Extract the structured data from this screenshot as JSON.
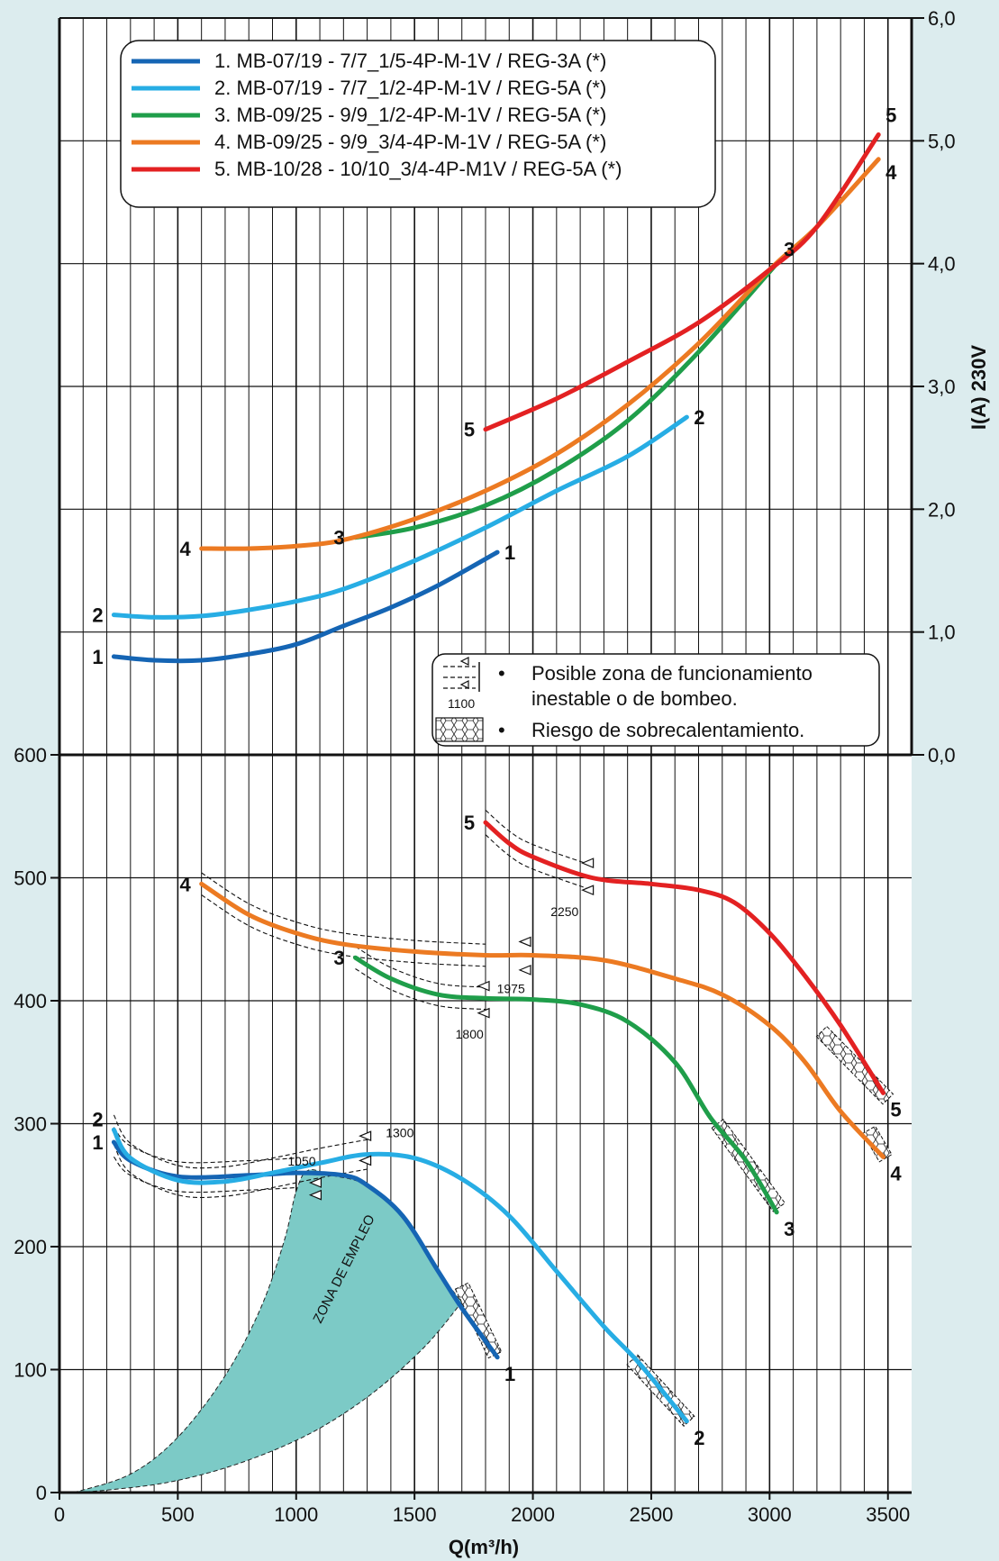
{
  "chart_data": {
    "type": "line",
    "x_label": "Q(m³/h)",
    "x_ticks": [
      0,
      500,
      1000,
      1500,
      2000,
      2500,
      3000,
      3500
    ],
    "xlim": [
      0,
      3600
    ],
    "grid": true,
    "pressure_panel": {
      "ylim": [
        0,
        600
      ],
      "y_ticks": [
        0,
        100,
        200,
        300,
        400,
        500,
        600
      ],
      "series": [
        {
          "id": "1",
          "color": "#1565b4",
          "points": [
            [
              230,
              285
            ],
            [
              300,
              270
            ],
            [
              500,
              257
            ],
            [
              800,
              258
            ],
            [
              1000,
              260
            ],
            [
              1200,
              258
            ],
            [
              1300,
              250
            ],
            [
              1450,
              225
            ],
            [
              1600,
              180
            ],
            [
              1700,
              150
            ],
            [
              1850,
              110
            ]
          ]
        },
        {
          "id": "2",
          "color": "#27ade4",
          "points": [
            [
              230,
              295
            ],
            [
              300,
              272
            ],
            [
              500,
              254
            ],
            [
              700,
              253
            ],
            [
              900,
              260
            ],
            [
              1100,
              268
            ],
            [
              1300,
              275
            ],
            [
              1500,
              272
            ],
            [
              1700,
              255
            ],
            [
              1900,
              225
            ],
            [
              2100,
              180
            ],
            [
              2300,
              135
            ],
            [
              2450,
              105
            ],
            [
              2650,
              58
            ]
          ]
        },
        {
          "id": "3",
          "color": "#1f9e4a",
          "points": [
            [
              1250,
              435
            ],
            [
              1400,
              418
            ],
            [
              1600,
              405
            ],
            [
              1800,
              402
            ],
            [
              2000,
              401
            ],
            [
              2200,
              397
            ],
            [
              2400,
              383
            ],
            [
              2600,
              350
            ],
            [
              2750,
              305
            ],
            [
              2900,
              270
            ],
            [
              3030,
              228
            ]
          ]
        },
        {
          "id": "4",
          "color": "#ec7a22",
          "points": [
            [
              600,
              495
            ],
            [
              800,
              470
            ],
            [
              1000,
              455
            ],
            [
              1200,
              446
            ],
            [
              1500,
              440
            ],
            [
              1800,
              437
            ],
            [
              2000,
              437
            ],
            [
              2300,
              433
            ],
            [
              2600,
              418
            ],
            [
              2800,
              405
            ],
            [
              3000,
              380
            ],
            [
              3150,
              350
            ],
            [
              3300,
              310
            ],
            [
              3480,
              273
            ]
          ]
        },
        {
          "id": "5",
          "color": "#e32122",
          "points": [
            [
              1800,
              545
            ],
            [
              1900,
              528
            ],
            [
              2000,
              517
            ],
            [
              2250,
              500
            ],
            [
              2500,
              495
            ],
            [
              2700,
              490
            ],
            [
              2850,
              480
            ],
            [
              3000,
              455
            ],
            [
              3150,
              420
            ],
            [
              3300,
              380
            ],
            [
              3480,
              325
            ]
          ]
        }
      ],
      "annotations": [
        "1050",
        "1300",
        "1800",
        "1975",
        "2250"
      ],
      "zone_label": "ZONA DE EMPLEO"
    },
    "current_panel": {
      "y_label": "I(A) 230V",
      "ylim": [
        0,
        6
      ],
      "y_ticks": [
        "0,0",
        "1,0",
        "2,0",
        "3,0",
        "4,0",
        "5,0",
        "6,0"
      ],
      "series": [
        {
          "id": "1",
          "color": "#1565b4",
          "points": [
            [
              230,
              0.8
            ],
            [
              400,
              0.77
            ],
            [
              600,
              0.77
            ],
            [
              800,
              0.82
            ],
            [
              1000,
              0.9
            ],
            [
              1200,
              1.05
            ],
            [
              1400,
              1.2
            ],
            [
              1600,
              1.38
            ],
            [
              1850,
              1.65
            ]
          ]
        },
        {
          "id": "2",
          "color": "#27ade4",
          "points": [
            [
              230,
              1.14
            ],
            [
              400,
              1.12
            ],
            [
              600,
              1.13
            ],
            [
              800,
              1.18
            ],
            [
              1000,
              1.25
            ],
            [
              1200,
              1.35
            ],
            [
              1500,
              1.58
            ],
            [
              1800,
              1.85
            ],
            [
              2100,
              2.15
            ],
            [
              2400,
              2.43
            ],
            [
              2650,
              2.75
            ]
          ]
        },
        {
          "id": "3",
          "color": "#1f9e4a",
          "points": [
            [
              1250,
              1.77
            ],
            [
              1500,
              1.85
            ],
            [
              1800,
              2.03
            ],
            [
              2100,
              2.32
            ],
            [
              2400,
              2.72
            ],
            [
              2700,
              3.28
            ],
            [
              3030,
              4.0
            ]
          ]
        },
        {
          "id": "4",
          "color": "#ec7a22",
          "points": [
            [
              600,
              1.68
            ],
            [
              800,
              1.68
            ],
            [
              1000,
              1.7
            ],
            [
              1200,
              1.75
            ],
            [
              1500,
              1.92
            ],
            [
              1800,
              2.15
            ],
            [
              2100,
              2.45
            ],
            [
              2400,
              2.85
            ],
            [
              2700,
              3.35
            ],
            [
              3000,
              3.95
            ],
            [
              3200,
              4.3
            ],
            [
              3460,
              4.85
            ]
          ]
        },
        {
          "id": "5",
          "color": "#e32122",
          "points": [
            [
              1800,
              2.65
            ],
            [
              2100,
              2.9
            ],
            [
              2400,
              3.2
            ],
            [
              2700,
              3.52
            ],
            [
              3000,
              3.95
            ],
            [
              3200,
              4.3
            ],
            [
              3460,
              5.05
            ]
          ]
        }
      ]
    }
  },
  "legend": {
    "entries": [
      {
        "label": "1. MB-07/19 - 7/7_1/5-4P-M-1V / REG-3A (*)",
        "color": "#1565b4"
      },
      {
        "label": "2. MB-07/19 - 7/7_1/2-4P-M-1V / REG-5A (*)",
        "color": "#27ade4"
      },
      {
        "label": "3. MB-09/25 - 9/9_1/2-4P-M-1V / REG-5A (*)",
        "color": "#1f9e4a"
      },
      {
        "label": "4. MB-09/25 - 9/9_3/4-4P-M-1V / REG-5A (*)",
        "color": "#ec7a22"
      },
      {
        "label": "5. MB-10/28 - 10/10_3/4-4P-M1V / REG-5A (*)",
        "color": "#e32122"
      }
    ]
  },
  "notes": {
    "unstable_line1": "Posible zona de funcionamiento",
    "unstable_line2": "inestable o de bombeo.",
    "unstable_icon_value": "1100",
    "overheat": "Riesgo de sobrecalentamiento.",
    "bullet": "•"
  }
}
